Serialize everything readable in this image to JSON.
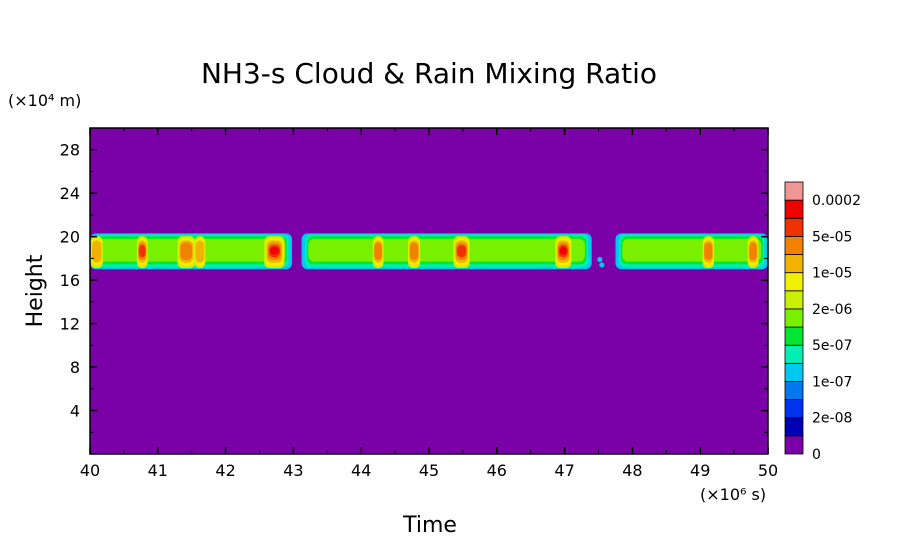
{
  "chart_data": {
    "type": "heatmap",
    "title": "NH3-s Cloud & Rain Mixing Ratio",
    "xlabel": "Time",
    "ylabel": "Height",
    "x_unit": "(×10⁶ s)",
    "y_unit": "(×10⁴ m)",
    "xlim": [
      40,
      50
    ],
    "ylim": [
      0,
      30
    ],
    "x_ticks": [
      "40",
      "41",
      "42",
      "43",
      "44",
      "45",
      "46",
      "47",
      "48",
      "49",
      "50"
    ],
    "y_ticks": [
      "4",
      "8",
      "12",
      "16",
      "20",
      "24",
      "28"
    ],
    "colorbar": {
      "labels": [
        "0",
        "2e-08",
        "1e-07",
        "5e-07",
        "2e-06",
        "1e-05",
        "5e-05",
        "0.0002"
      ],
      "colors": [
        "#7a00a8",
        "#0000b4",
        "#0032f0",
        "#0078f0",
        "#00c8f0",
        "#00f0b4",
        "#00e632",
        "#78f000",
        "#c8f000",
        "#f0f000",
        "#f0b400",
        "#f08200",
        "#f03200",
        "#f00000",
        "#f09696"
      ]
    },
    "background_color": "#7a00a8",
    "band": {
      "bottom": 17.0,
      "top": 20.3,
      "core_bottom": 17.7,
      "core_top": 19.8,
      "gaps": [
        [
          42.98,
          43.12
        ],
        [
          47.4,
          47.75
        ]
      ],
      "scattered_points": [
        [
          47.52,
          17.9
        ],
        [
          47.55,
          17.4
        ]
      ]
    },
    "peaks": [
      {
        "x": 40.1,
        "width": 0.14,
        "level": 10
      },
      {
        "x": 40.77,
        "width": 0.12,
        "level": 12
      },
      {
        "x": 41.42,
        "width": 0.22,
        "level": 11
      },
      {
        "x": 41.62,
        "width": 0.12,
        "level": 10
      },
      {
        "x": 42.72,
        "width": 0.26,
        "level": 13
      },
      {
        "x": 44.25,
        "width": 0.12,
        "level": 11
      },
      {
        "x": 44.78,
        "width": 0.14,
        "level": 11
      },
      {
        "x": 45.48,
        "width": 0.2,
        "level": 12
      },
      {
        "x": 46.98,
        "width": 0.2,
        "level": 13
      },
      {
        "x": 49.12,
        "width": 0.13,
        "level": 11
      },
      {
        "x": 49.78,
        "width": 0.12,
        "level": 11
      }
    ]
  }
}
